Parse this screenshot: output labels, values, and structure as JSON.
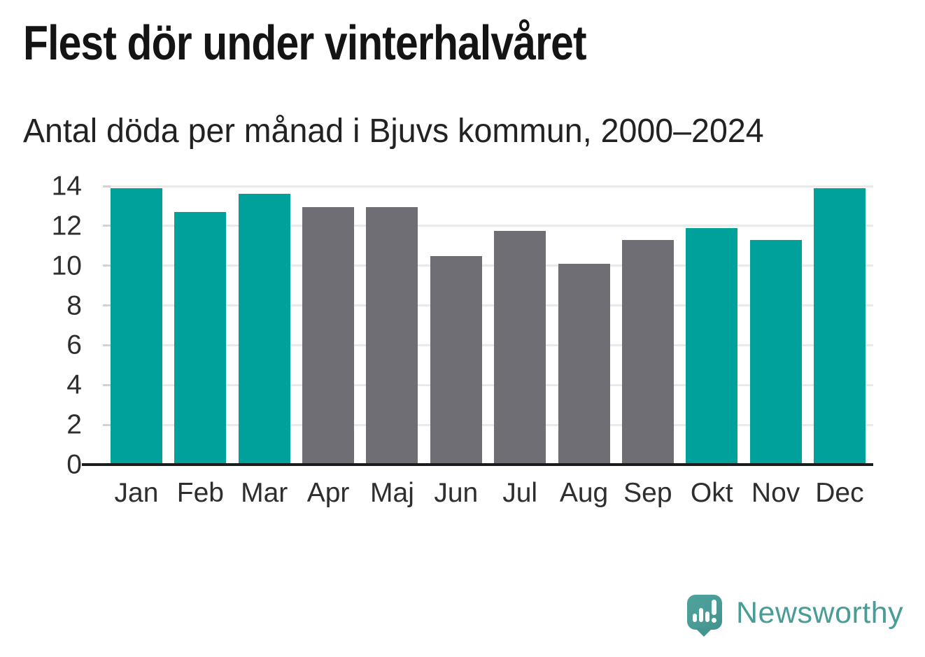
{
  "page": {
    "title": "Flest dör under vinterhalvåret",
    "subtitle": "Antal döda per månad i Bjuvs kommun, 2000–2024"
  },
  "chart_data": {
    "type": "bar",
    "title": "Flest dör under vinterhalvåret",
    "subtitle": "Antal döda per månad i Bjuvs kommun, 2000–2024",
    "categories": [
      "Jan",
      "Feb",
      "Mar",
      "Apr",
      "Maj",
      "Jun",
      "Jul",
      "Aug",
      "Sep",
      "Okt",
      "Nov",
      "Dec"
    ],
    "values": [
      13.9,
      12.7,
      13.6,
      12.95,
      12.95,
      10.5,
      11.75,
      10.1,
      11.3,
      11.9,
      11.3,
      13.9
    ],
    "highlighted_months": [
      "Jan",
      "Feb",
      "Mar",
      "Okt",
      "Nov",
      "Dec"
    ],
    "bar_colors": [
      "#00a19a",
      "#00a19a",
      "#00a19a",
      "#6f6e74",
      "#6f6e74",
      "#6f6e74",
      "#6f6e74",
      "#6f6e74",
      "#6f6e74",
      "#00a19a",
      "#00a19a",
      "#00a19a"
    ],
    "xlabel": "",
    "ylabel": "",
    "ylim": [
      0,
      14
    ],
    "yticks": [
      0,
      2,
      4,
      6,
      8,
      10,
      12,
      14
    ],
    "grid": true,
    "legend_position": "none",
    "colors": {
      "highlight": "#00a19a",
      "default": "#6f6e74"
    }
  },
  "branding": {
    "logo_text": "Newsworthy",
    "logo_color": "#4a9c96"
  },
  "theme": {
    "background": "#ffffff",
    "gridline": "#e9e9e9",
    "axis_line": "#1b1b1b",
    "label_color": "#2e2e2e",
    "title_color": "#141414"
  }
}
